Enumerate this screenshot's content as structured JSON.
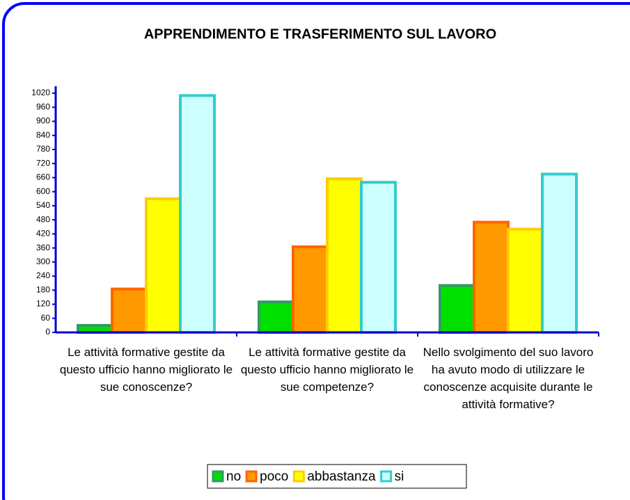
{
  "chart_data": {
    "type": "bar",
    "title": "APPRENDIMENTO E TRASFERIMENTO SUL LAVORO",
    "categories": [
      "Le attività formative gestite da questo ufficio hanno migliorato le sue conoscenze?",
      "Le attività formative gestite da questo ufficio hanno migliorato le sue competenze?",
      "Nello svolgimento del suo lavoro ha avuto modo di utilizzare le conoscenze acquisite durante le attività formative?"
    ],
    "series": [
      {
        "name": "no",
        "color": "#00e000",
        "border": "#339966",
        "values": [
          30,
          130,
          200
        ]
      },
      {
        "name": "poco",
        "color": "#ff9900",
        "border": "#ff6600",
        "values": [
          185,
          365,
          470
        ]
      },
      {
        "name": "abbastanza",
        "color": "#ffff00",
        "border": "#ffcc00",
        "values": [
          570,
          655,
          440
        ]
      },
      {
        "name": "si",
        "color": "#ccffff",
        "border": "#33cccc",
        "values": [
          1010,
          640,
          675
        ]
      }
    ],
    "ylim": [
      0,
      1020
    ],
    "yticks": [
      0,
      60,
      120,
      180,
      240,
      300,
      360,
      420,
      480,
      540,
      600,
      660,
      720,
      780,
      840,
      900,
      960,
      1020
    ],
    "grid": false,
    "legend": "bottom"
  }
}
